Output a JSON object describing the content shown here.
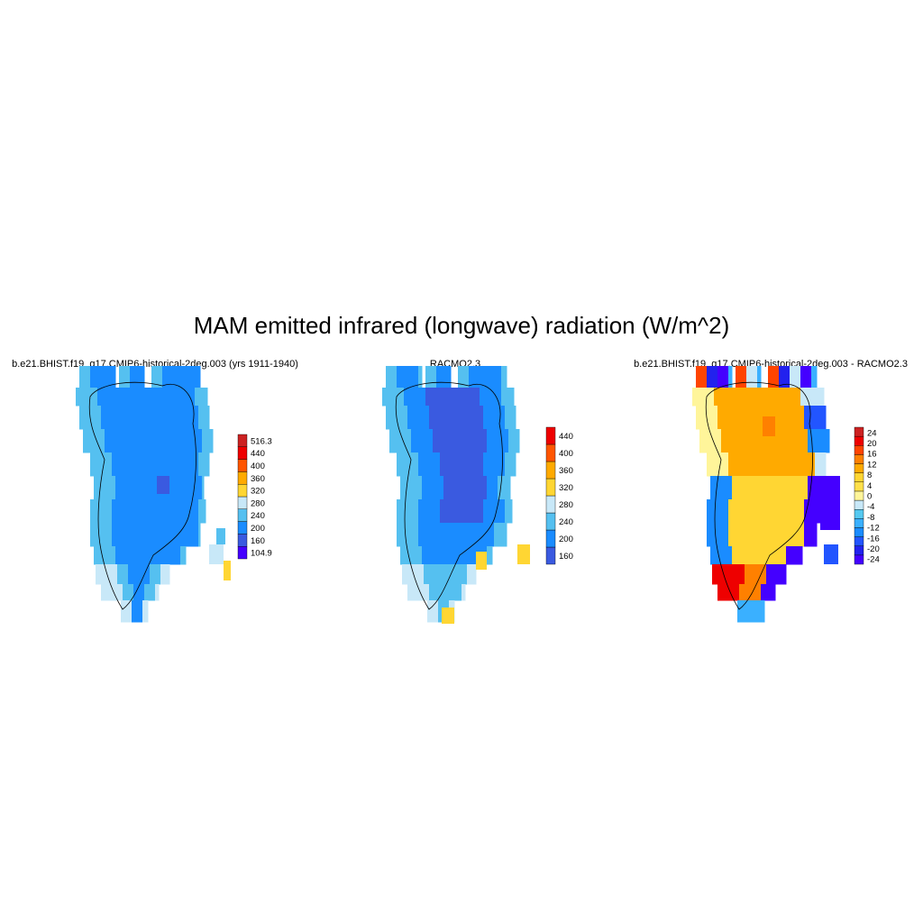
{
  "page_title": "MAM emitted infrared (longwave) radiation (W/m^2)",
  "colors": {
    "abs_scale": [
      "#4400ff",
      "#3a5ae0",
      "#1a8cff",
      "#55c0f0",
      "#c8e8f8",
      "#ffd633",
      "#ffaa00",
      "#ff5500",
      "#ee0000",
      "#cc2222"
    ],
    "diff_scale": [
      "#4400ff",
      "#2222ee",
      "#2255ff",
      "#1a8cff",
      "#3ab0ff",
      "#55c8f0",
      "#c8e8f8",
      "#fff59a",
      "#ffe04a",
      "#ffd633",
      "#ffaa00",
      "#ff8000",
      "#ff4400",
      "#ee0000",
      "#cc2222"
    ]
  },
  "chart_data": [
    {
      "type": "heatmap",
      "title": "b.e21.BHIST.f19_g17.CMIP6-historical-2deg.003 (yrs 1911-1940)",
      "colorbar_labels": [
        "104.9",
        "160",
        "200",
        "240",
        "280",
        "320",
        "360",
        "400",
        "440",
        "516.3"
      ],
      "value_range": [
        104.9,
        516.3
      ]
    },
    {
      "type": "heatmap",
      "title": "RACMO2.3",
      "colorbar_labels": [
        "160",
        "200",
        "240",
        "280",
        "320",
        "360",
        "400",
        "440"
      ],
      "value_range": [
        120,
        480
      ]
    },
    {
      "type": "heatmap",
      "title": "b.e21.BHIST.f19_g17.CMIP6-historical-2deg.003 - RACMO2.3",
      "colorbar_labels": [
        "-24",
        "-20",
        "-16",
        "-12",
        "-8",
        "-4",
        "0",
        "4",
        "8",
        "12",
        "16",
        "20",
        "24"
      ],
      "value_range": [
        -28,
        28
      ]
    }
  ]
}
